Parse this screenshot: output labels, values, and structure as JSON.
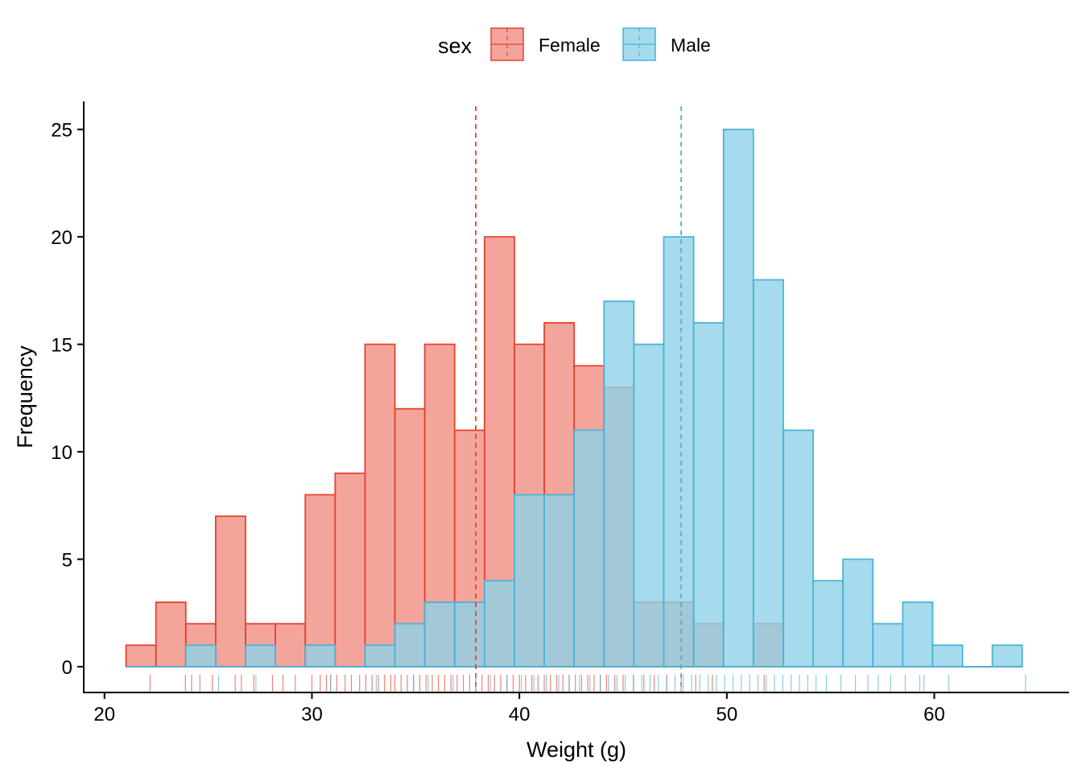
{
  "chart_data": {
    "type": "bar",
    "subtype": "overlaid histogram with mean lines and rug",
    "xlabel": "Weight (g)",
    "ylabel": "Frequency",
    "xlim": [
      19,
      66.5
    ],
    "ylim": [
      -1.2,
      26.3
    ],
    "x_ticks": [
      20,
      30,
      40,
      50,
      60
    ],
    "y_ticks": [
      0,
      5,
      10,
      15,
      20,
      25
    ],
    "legend": {
      "title": "sex",
      "position": "top",
      "entries": [
        "Female",
        "Male"
      ]
    },
    "grid": false,
    "bin_edges": [
      21.04,
      22.48,
      23.92,
      25.36,
      26.8,
      28.24,
      29.68,
      31.12,
      32.56,
      34.0,
      35.44,
      36.88,
      38.32,
      39.76,
      41.2,
      42.64,
      44.08,
      45.52,
      46.96,
      48.4,
      49.84,
      51.28,
      52.72,
      54.16,
      55.6,
      57.04,
      58.48,
      59.92,
      61.36,
      62.8,
      64.24
    ],
    "series": [
      {
        "name": "Female",
        "color": "#E7422F",
        "fill": "#F0877A",
        "counts": [
          1,
          3,
          2,
          7,
          2,
          2,
          8,
          9,
          15,
          12,
          15,
          11,
          20,
          15,
          16,
          14,
          13,
          3,
          3,
          2,
          0,
          2,
          0,
          0,
          0,
          0,
          0,
          0,
          0,
          0
        ],
        "mean": 37.9,
        "rug": [
          22.2,
          23.9,
          24.2,
          24.6,
          25.2,
          26.3,
          26.6,
          27.2,
          28.1,
          28.6,
          29.2,
          30.0,
          30.4,
          30.7,
          30.9,
          31.2,
          31.6,
          31.9,
          32.3,
          32.6,
          32.9,
          33.2,
          33.5,
          33.8,
          34.0,
          34.3,
          34.6,
          34.9,
          35.2,
          35.5,
          35.8,
          36.1,
          36.4,
          36.7,
          37.0,
          37.3,
          37.6,
          37.9,
          38.2,
          38.5,
          38.8,
          39.1,
          39.4,
          39.7,
          40.0,
          40.3,
          40.6,
          40.9,
          41.2,
          41.5,
          41.8,
          42.1,
          42.4,
          42.7,
          43.0,
          43.3,
          43.6,
          43.9,
          44.2,
          44.6,
          45.0,
          45.5,
          46.0,
          46.5,
          47.1,
          47.8,
          48.5,
          49.3,
          51.8
        ]
      },
      {
        "name": "Male",
        "color": "#4AB3D6",
        "fill": "#8ED2E8",
        "counts": [
          0,
          0,
          1,
          0,
          1,
          0,
          1,
          0,
          1,
          2,
          3,
          3,
          4,
          8,
          8,
          11,
          17,
          15,
          20,
          16,
          25,
          18,
          11,
          4,
          5,
          2,
          3,
          1,
          0,
          1
        ],
        "mean": 47.8,
        "rug": [
          25.5,
          27.3,
          30.9,
          33.1,
          34.9,
          35.6,
          36.8,
          37.9,
          38.6,
          39.4,
          40.1,
          40.7,
          41.3,
          41.9,
          42.4,
          42.9,
          43.4,
          43.9,
          44.3,
          44.7,
          45.1,
          45.5,
          45.9,
          46.3,
          46.7,
          47.1,
          47.5,
          47.9,
          48.3,
          48.7,
          49.1,
          49.5,
          49.9,
          50.3,
          50.7,
          51.1,
          51.5,
          51.9,
          52.3,
          52.7,
          53.1,
          53.5,
          53.9,
          54.3,
          54.8,
          55.5,
          56.2,
          56.8,
          57.3,
          57.9,
          58.6,
          59.3,
          59.5,
          60.7,
          64.4
        ]
      }
    ]
  }
}
